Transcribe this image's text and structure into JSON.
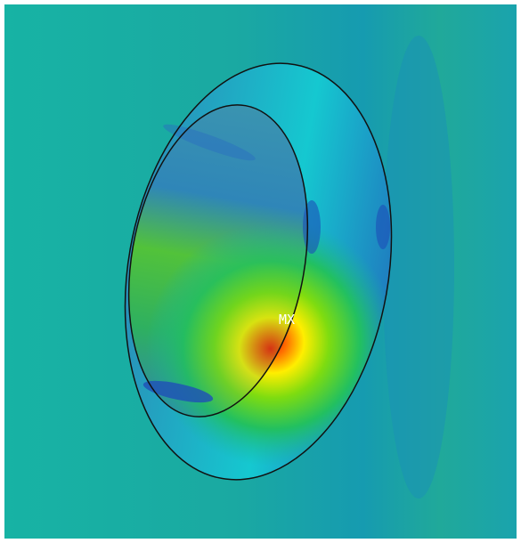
{
  "annotations": {
    "max_label": "MX"
  }
}
